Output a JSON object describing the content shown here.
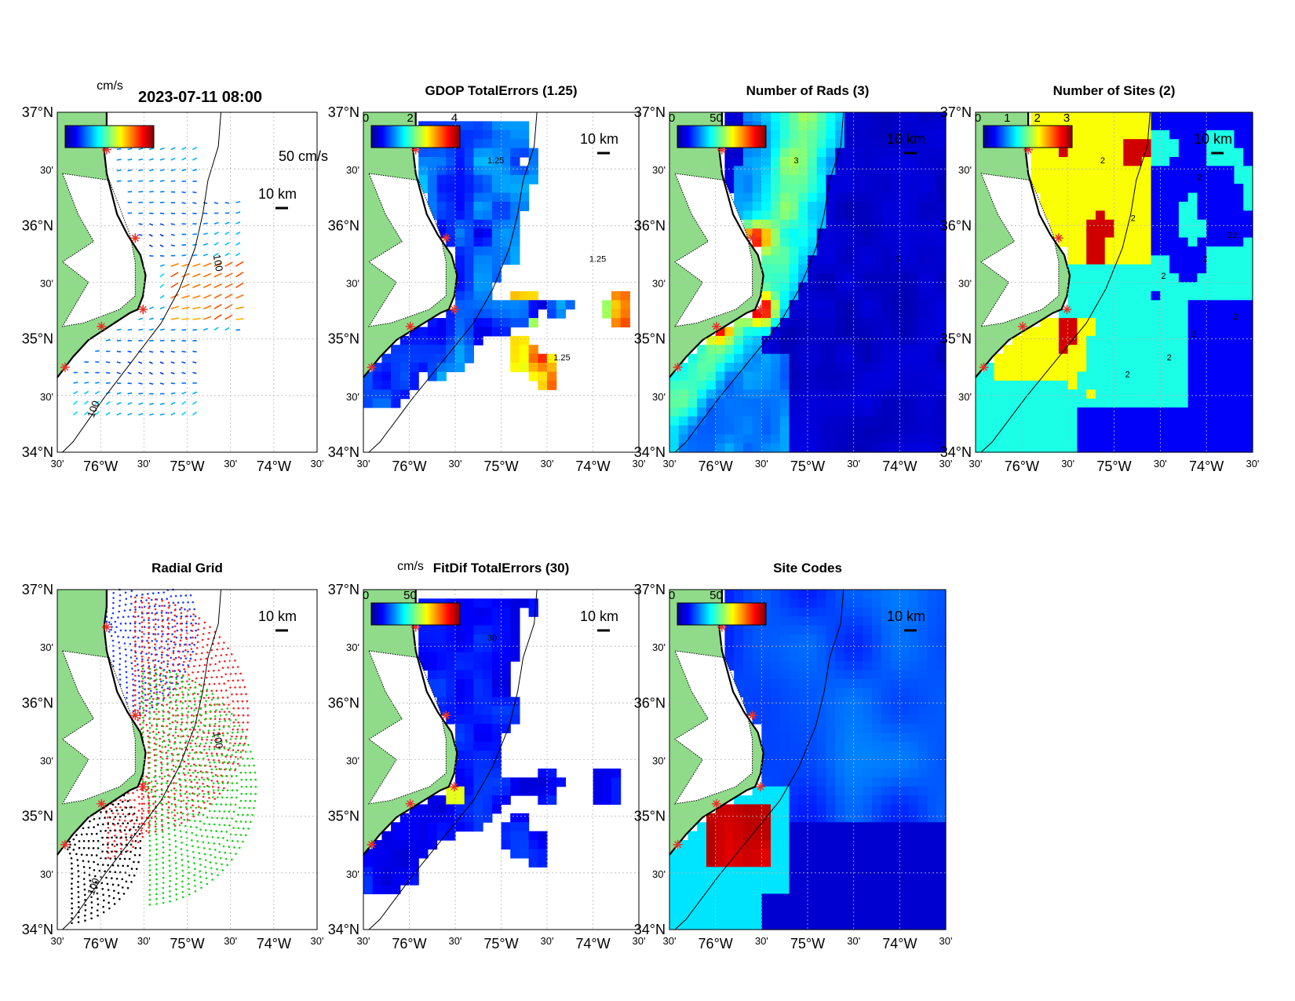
{
  "figure": {
    "timestamp": "2023-07-11 08:00",
    "colorbar_unit": "cm/s",
    "vector_scale_label": "50 cm/s",
    "distance_scale_label": "10 km",
    "lat_labels": [
      "37°N",
      "30'",
      "36°N",
      "30'",
      "35°N",
      "30'",
      "34°N"
    ],
    "lon_labels": [
      "30'",
      "76°W",
      "30'",
      "75°W",
      "30'",
      "74°W",
      "30'"
    ],
    "contour_label": "100",
    "colors": {
      "land": "#8fdb8a",
      "site_marker": "#e8322a",
      "grid_line": "#b8b8b8"
    }
  },
  "panels": [
    {
      "id": "vectors",
      "title": "",
      "colorbar_ticks": [],
      "field": "vectors"
    },
    {
      "id": "gdop",
      "title": "GDOP TotalErrors (1.25)",
      "colorbar_ticks": [
        "0",
        "2",
        "4"
      ],
      "field": "gdop",
      "contour_labels": [
        "1.25",
        "1.25",
        "1.25"
      ]
    },
    {
      "id": "rads",
      "title": "Number of Rads (3)",
      "colorbar_ticks": [
        "0",
        "50"
      ],
      "field": "rads",
      "contour_labels": [
        "3",
        "3"
      ]
    },
    {
      "id": "sites",
      "title": "Number of Sites (2)",
      "colorbar_ticks": [
        "0",
        "1",
        "2",
        "3"
      ],
      "field": "sites",
      "contour_labels": [
        "2",
        "2",
        "2",
        "2",
        "2",
        "2",
        "2",
        "2",
        "22",
        "2"
      ]
    },
    {
      "id": "radial",
      "title": "Radial Grid",
      "colorbar_ticks": [],
      "field": "radial"
    },
    {
      "id": "fitdif",
      "title": "FitDif TotalErrors (30)",
      "colorbar_ticks": [
        "0",
        "50"
      ],
      "colorbar_unit": "cm/s",
      "field": "fitdif",
      "contour_labels": [
        "30"
      ]
    },
    {
      "id": "codes",
      "title": "Site Codes",
      "colorbar_ticks": [
        "0",
        "50"
      ],
      "field": "codes"
    }
  ]
}
